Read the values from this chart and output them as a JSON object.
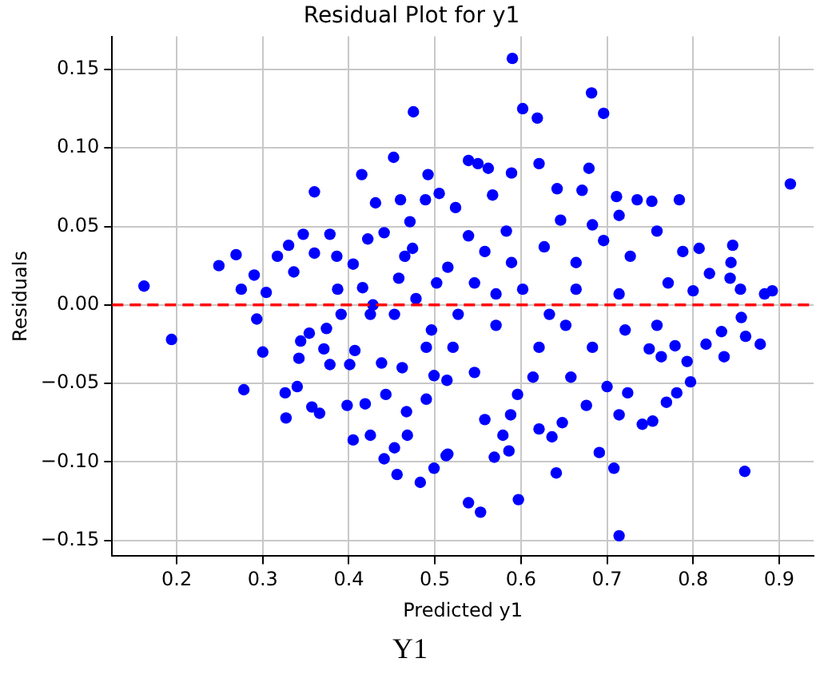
{
  "chart_data": {
    "type": "scatter",
    "title": "Residual Plot for y1",
    "xlabel": "Predicted y1",
    "ylabel": "Residuals",
    "annotations": [
      "Y1"
    ],
    "x": [
      0.162,
      0.194,
      0.249,
      0.269,
      0.275,
      0.278,
      0.29,
      0.293,
      0.3,
      0.304,
      0.317,
      0.326,
      0.327,
      0.33,
      0.336,
      0.34,
      0.342,
      0.344,
      0.347,
      0.354,
      0.357,
      0.36,
      0.36,
      0.366,
      0.371,
      0.374,
      0.378,
      0.378,
      0.386,
      0.387,
      0.391,
      0.398,
      0.401,
      0.405,
      0.405,
      0.407,
      0.415,
      0.416,
      0.419,
      0.422,
      0.425,
      0.425,
      0.431,
      0.438,
      0.441,
      0.441,
      0.443,
      0.452,
      0.453,
      0.456,
      0.458,
      0.46,
      0.462,
      0.467,
      0.468,
      0.471,
      0.474,
      0.475,
      0.483,
      0.489,
      0.49,
      0.492,
      0.496,
      0.499,
      0.499,
      0.505,
      0.515,
      0.515,
      0.453,
      0.428,
      0.478,
      0.502,
      0.49,
      0.465,
      0.59,
      0.602,
      0.619,
      0.682,
      0.696,
      0.913,
      0.86,
      0.714,
      0.597,
      0.539,
      0.553,
      0.513,
      0.641,
      0.691,
      0.708,
      0.569,
      0.586,
      0.579,
      0.558,
      0.588,
      0.621,
      0.636,
      0.648,
      0.676,
      0.714,
      0.741,
      0.753,
      0.769,
      0.797,
      0.514,
      0.539,
      0.55,
      0.562,
      0.589,
      0.621,
      0.642,
      0.679,
      0.671,
      0.711,
      0.735,
      0.752,
      0.784,
      0.567,
      0.524,
      0.807,
      0.846,
      0.844,
      0.843,
      0.855,
      0.883,
      0.892,
      0.819,
      0.8,
      0.815,
      0.836,
      0.833,
      0.861,
      0.878,
      0.856,
      0.788,
      0.793,
      0.779,
      0.763,
      0.749,
      0.781,
      0.724,
      0.7,
      0.658,
      0.614,
      0.596,
      0.546,
      0.521,
      0.527,
      0.571,
      0.621,
      0.652,
      0.683,
      0.721,
      0.758,
      0.633,
      0.558,
      0.589,
      0.627,
      0.664,
      0.696,
      0.727,
      0.758,
      0.539,
      0.583,
      0.646,
      0.683,
      0.714,
      0.546,
      0.602,
      0.664,
      0.714,
      0.771,
      0.571
    ],
    "series": [
      {
        "color": "#0000ff",
        "values": [
          0.012,
          -0.022,
          0.025,
          0.032,
          0.01,
          -0.054,
          0.019,
          -0.009,
          -0.03,
          0.008,
          0.031,
          -0.056,
          -0.072,
          0.038,
          0.021,
          -0.052,
          -0.034,
          -0.023,
          0.045,
          -0.018,
          -0.065,
          0.072,
          0.033,
          -0.069,
          -0.028,
          -0.015,
          0.045,
          -0.038,
          0.031,
          0.01,
          -0.006,
          -0.064,
          -0.038,
          0.026,
          -0.086,
          -0.029,
          0.083,
          0.011,
          -0.063,
          0.042,
          -0.083,
          -0.006,
          0.065,
          -0.037,
          0.046,
          -0.098,
          -0.057,
          0.094,
          -0.091,
          -0.108,
          0.017,
          0.067,
          -0.04,
          -0.068,
          -0.083,
          0.053,
          0.036,
          0.123,
          -0.113,
          0.067,
          -0.06,
          0.083,
          -0.016,
          -0.104,
          -0.045,
          0.071,
          0.024,
          -0.095,
          -0.006,
          0.0,
          0.004,
          0.014,
          -0.027,
          0.031,
          0.157,
          0.125,
          0.119,
          0.135,
          0.122,
          0.077,
          -0.106,
          -0.147,
          -0.124,
          -0.126,
          -0.132,
          -0.096,
          -0.107,
          -0.094,
          -0.104,
          -0.097,
          -0.093,
          -0.083,
          -0.073,
          -0.07,
          -0.079,
          -0.084,
          -0.075,
          -0.064,
          -0.07,
          -0.076,
          -0.074,
          -0.062,
          -0.049,
          -0.048,
          0.092,
          0.09,
          0.087,
          0.084,
          0.09,
          0.074,
          0.087,
          0.073,
          0.069,
          0.067,
          0.066,
          0.067,
          0.07,
          0.062,
          0.036,
          0.038,
          0.027,
          0.017,
          0.01,
          0.007,
          0.009,
          0.02,
          0.009,
          -0.025,
          -0.033,
          -0.017,
          -0.02,
          -0.025,
          -0.008,
          0.034,
          -0.036,
          -0.026,
          -0.033,
          -0.028,
          -0.056,
          -0.056,
          -0.052,
          -0.046,
          -0.046,
          -0.057,
          -0.043,
          -0.027,
          -0.006,
          -0.013,
          -0.027,
          -0.013,
          -0.027,
          -0.016,
          -0.013,
          -0.006,
          0.034,
          0.027,
          0.037,
          0.027,
          0.041,
          0.031,
          0.047,
          0.044,
          0.047,
          0.054,
          0.051,
          0.057,
          0.014,
          0.01,
          0.01,
          0.007,
          0.014,
          0.007
        ]
      }
    ],
    "xlim": [
      0.125,
      0.94
    ],
    "ylim": [
      -0.16,
      0.171
    ],
    "xticks": [
      0.2,
      0.3,
      0.4,
      0.5,
      0.6,
      0.7,
      0.8,
      0.9
    ],
    "yticks": [
      {
        "value": -0.15,
        "label": "−0.15"
      },
      {
        "value": -0.1,
        "label": "−0.10"
      },
      {
        "value": -0.05,
        "label": "−0.05"
      },
      {
        "value": 0,
        "label": "0.00"
      },
      {
        "value": 0.05,
        "label": "0.05"
      },
      {
        "value": 0.1,
        "label": "0.10"
      },
      {
        "value": 0.15,
        "label": "0.15"
      }
    ],
    "ref_lines": [
      {
        "axis": "y",
        "value": 0,
        "color": "#ff0000",
        "line_style": "dashed"
      }
    ],
    "grid": true,
    "marker": "circle"
  }
}
